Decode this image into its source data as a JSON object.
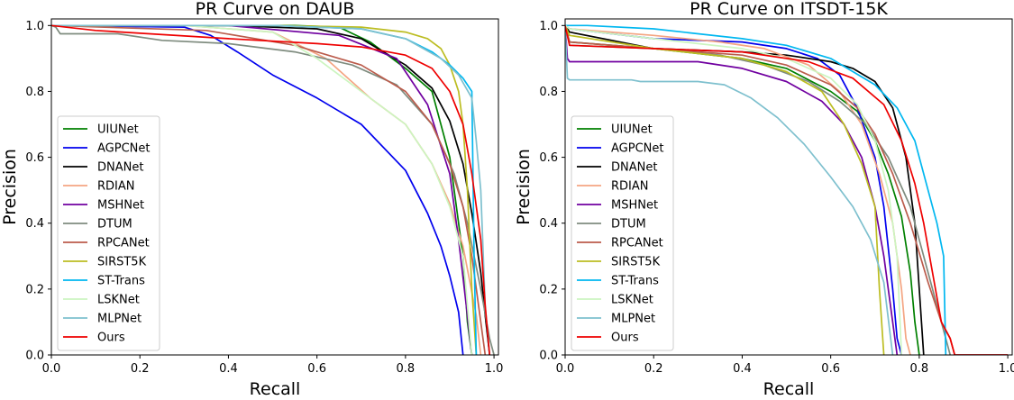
{
  "chart_data": [
    {
      "type": "line",
      "title": "PR Curve on DAUB",
      "xlabel": "Recall",
      "ylabel": "Precision",
      "xlim": [
        0,
        1.01
      ],
      "ylim": [
        0,
        1.02
      ],
      "xticks": [
        0.0,
        0.2,
        0.4,
        0.6,
        0.8,
        1.0
      ],
      "yticks": [
        0.0,
        0.2,
        0.4,
        0.6,
        0.8,
        1.0
      ],
      "xtick_labels": [
        "0.0",
        "0.2",
        "0.4",
        "0.6",
        "0.8",
        "1.0"
      ],
      "ytick_labels": [
        "0.0",
        "0.2",
        "0.4",
        "0.6",
        "0.8",
        "1.0"
      ],
      "grid": false,
      "legend": "lower-left",
      "series": [
        {
          "name": "UIUNet",
          "color": "#008000",
          "x": [
            0,
            0.3,
            0.55,
            0.65,
            0.72,
            0.8,
            0.86,
            0.9,
            0.93,
            0.94,
            0.95
          ],
          "y": [
            1,
            1,
            1,
            0.995,
            0.95,
            0.87,
            0.8,
            0.6,
            0.3,
            0.1,
            0
          ]
        },
        {
          "name": "AGPCNet",
          "color": "#0000ee",
          "x": [
            0,
            0.3,
            0.36,
            0.42,
            0.5,
            0.6,
            0.7,
            0.8,
            0.85,
            0.88,
            0.9,
            0.92,
            0.93
          ],
          "y": [
            1,
            0.995,
            0.97,
            0.92,
            0.85,
            0.78,
            0.7,
            0.56,
            0.43,
            0.33,
            0.24,
            0.13,
            0
          ]
        },
        {
          "name": "DNANet",
          "color": "#000000",
          "x": [
            0,
            0.4,
            0.6,
            0.7,
            0.8,
            0.86,
            0.9,
            0.93,
            0.95,
            0.97,
            0.98,
            0.99
          ],
          "y": [
            1,
            1,
            0.99,
            0.96,
            0.88,
            0.81,
            0.71,
            0.58,
            0.43,
            0.25,
            0.12,
            0
          ]
        },
        {
          "name": "RDIAN",
          "color": "#f4a582",
          "x": [
            0,
            0.3,
            0.5,
            0.62,
            0.72,
            0.8,
            0.86,
            0.9,
            0.93,
            0.96,
            0.97
          ],
          "y": [
            1,
            1,
            0.98,
            0.9,
            0.78,
            0.7,
            0.58,
            0.46,
            0.33,
            0.12,
            0
          ]
        },
        {
          "name": "MSHNet",
          "color": "#7000a0",
          "x": [
            0,
            0.4,
            0.65,
            0.78,
            0.85,
            0.9,
            0.92,
            0.94,
            0.95
          ],
          "y": [
            1,
            1,
            0.97,
            0.9,
            0.76,
            0.55,
            0.35,
            0.12,
            0
          ]
        },
        {
          "name": "DTUM",
          "color": "#7f8c7f",
          "x": [
            0,
            0.01,
            0.02,
            0.15,
            0.25,
            0.4,
            0.55,
            0.68,
            0.78,
            0.86,
            0.91,
            0.94,
            0.97,
            0.99,
            1.0
          ],
          "y": [
            1,
            0.995,
            0.975,
            0.975,
            0.955,
            0.945,
            0.92,
            0.88,
            0.82,
            0.7,
            0.55,
            0.4,
            0.2,
            0.05,
            0
          ]
        },
        {
          "name": "RPCANet",
          "color": "#bb5c4c",
          "x": [
            0,
            0.35,
            0.55,
            0.7,
            0.8,
            0.86,
            0.9,
            0.93,
            0.95,
            0.97,
            0.98
          ],
          "y": [
            1,
            0.985,
            0.94,
            0.88,
            0.8,
            0.7,
            0.58,
            0.45,
            0.3,
            0.1,
            0
          ]
        },
        {
          "name": "SIRST5K",
          "color": "#bcbd22",
          "x": [
            0,
            0.5,
            0.7,
            0.8,
            0.85,
            0.88,
            0.9,
            0.92,
            0.93,
            0.94,
            0.95,
            0.96
          ],
          "y": [
            1,
            1,
            0.995,
            0.98,
            0.96,
            0.93,
            0.88,
            0.8,
            0.7,
            0.5,
            0.2,
            0
          ]
        },
        {
          "name": "ST-Trans",
          "color": "#00b7f0",
          "x": [
            0,
            0.5,
            0.7,
            0.8,
            0.86,
            0.9,
            0.93,
            0.94,
            0.95,
            0.955,
            0.96
          ],
          "y": [
            1,
            1,
            0.99,
            0.96,
            0.92,
            0.88,
            0.84,
            0.82,
            0.8,
            0.3,
            0
          ]
        },
        {
          "name": "LSKNet",
          "color": "#ccf5c0",
          "x": [
            0,
            0.3,
            0.5,
            0.6,
            0.7,
            0.8,
            0.86,
            0.9,
            0.93,
            0.95
          ],
          "y": [
            1,
            1,
            0.98,
            0.9,
            0.8,
            0.7,
            0.58,
            0.45,
            0.3,
            0
          ]
        },
        {
          "name": "MLPNet",
          "color": "#7ec0ce",
          "x": [
            0,
            0.5,
            0.7,
            0.8,
            0.88,
            0.92,
            0.95,
            0.96,
            0.97,
            0.98,
            0.99
          ],
          "y": [
            1,
            1,
            0.99,
            0.96,
            0.9,
            0.85,
            0.78,
            0.65,
            0.5,
            0.15,
            0
          ]
        },
        {
          "name": "Ours",
          "color": "#ee0000",
          "x": [
            0,
            0.1,
            0.4,
            0.6,
            0.7,
            0.8,
            0.86,
            0.9,
            0.93,
            0.95,
            0.97,
            0.98,
            0.99
          ],
          "y": [
            1,
            0.985,
            0.96,
            0.945,
            0.935,
            0.91,
            0.87,
            0.8,
            0.7,
            0.55,
            0.35,
            0.15,
            0
          ]
        }
      ]
    },
    {
      "type": "line",
      "title": "PR Curve on ITSDT-15K",
      "xlabel": "Recall",
      "ylabel": "Precision",
      "xlim": [
        0,
        1.01
      ],
      "ylim": [
        0,
        1.02
      ],
      "xticks": [
        0.0,
        0.2,
        0.4,
        0.6,
        0.8,
        1.0
      ],
      "yticks": [
        0.0,
        0.2,
        0.4,
        0.6,
        0.8,
        1.0
      ],
      "xtick_labels": [
        "0.0",
        "0.2",
        "0.4",
        "0.6",
        "0.8",
        "1.0"
      ],
      "ytick_labels": [
        "0.0",
        "0.2",
        "0.4",
        "0.6",
        "0.8",
        "1.0"
      ],
      "grid": false,
      "legend": "lower-left",
      "series": [
        {
          "name": "UIUNet",
          "color": "#008000",
          "x": [
            0,
            0.01,
            0.2,
            0.4,
            0.5,
            0.6,
            0.66,
            0.7,
            0.73,
            0.76,
            0.78,
            0.79,
            0.8
          ],
          "y": [
            1,
            0.95,
            0.93,
            0.9,
            0.87,
            0.8,
            0.74,
            0.65,
            0.55,
            0.42,
            0.25,
            0.1,
            0
          ]
        },
        {
          "name": "AGPCNet",
          "color": "#0000ee",
          "x": [
            0,
            0.01,
            0.2,
            0.4,
            0.5,
            0.57,
            0.62,
            0.66,
            0.7,
            0.72,
            0.74,
            0.75,
            0.76
          ],
          "y": [
            1,
            0.99,
            0.96,
            0.95,
            0.93,
            0.9,
            0.85,
            0.75,
            0.6,
            0.45,
            0.2,
            0.05,
            0
          ]
        },
        {
          "name": "DNANet",
          "color": "#000000",
          "x": [
            0,
            0.01,
            0.2,
            0.4,
            0.5,
            0.6,
            0.65,
            0.7,
            0.74,
            0.77,
            0.79,
            0.8,
            0.81
          ],
          "y": [
            1,
            0.98,
            0.93,
            0.92,
            0.91,
            0.89,
            0.87,
            0.83,
            0.75,
            0.6,
            0.4,
            0.2,
            0
          ]
        },
        {
          "name": "RDIAN",
          "color": "#f4a582",
          "x": [
            0,
            0.01,
            0.2,
            0.35,
            0.45,
            0.55,
            0.62,
            0.67,
            0.71,
            0.74,
            0.76,
            0.77,
            0.78
          ],
          "y": [
            1,
            0.99,
            0.97,
            0.95,
            0.93,
            0.88,
            0.8,
            0.7,
            0.55,
            0.4,
            0.2,
            0.05,
            0
          ]
        },
        {
          "name": "MSHNet",
          "color": "#7000a0",
          "x": [
            0,
            0.005,
            0.01,
            0.3,
            0.4,
            0.5,
            0.58,
            0.63,
            0.67,
            0.7,
            0.72,
            0.74,
            0.75
          ],
          "y": [
            1,
            0.9,
            0.89,
            0.89,
            0.87,
            0.83,
            0.77,
            0.7,
            0.6,
            0.45,
            0.3,
            0.1,
            0
          ]
        },
        {
          "name": "DTUM",
          "color": "#7f8c7f",
          "x": [
            0,
            0.01,
            0.2,
            0.35,
            0.45,
            0.55,
            0.62,
            0.68,
            0.73,
            0.78,
            0.82,
            0.85,
            0.87
          ],
          "y": [
            1,
            0.94,
            0.93,
            0.91,
            0.88,
            0.83,
            0.77,
            0.7,
            0.6,
            0.45,
            0.25,
            0.1,
            0
          ]
        },
        {
          "name": "RPCANet",
          "color": "#bb5c4c",
          "x": [
            0,
            0.01,
            0.2,
            0.4,
            0.5,
            0.6,
            0.66,
            0.7,
            0.74,
            0.78,
            0.82,
            0.85,
            0.87,
            0.88
          ],
          "y": [
            1,
            0.95,
            0.93,
            0.91,
            0.88,
            0.82,
            0.75,
            0.67,
            0.55,
            0.4,
            0.22,
            0.1,
            0.05,
            0
          ]
        },
        {
          "name": "SIRST5K",
          "color": "#bcbd22",
          "x": [
            0,
            0.01,
            0.2,
            0.4,
            0.5,
            0.58,
            0.63,
            0.67,
            0.7,
            0.71,
            0.72
          ],
          "y": [
            1,
            0.97,
            0.93,
            0.9,
            0.86,
            0.8,
            0.7,
            0.58,
            0.45,
            0.2,
            0
          ]
        },
        {
          "name": "ST-Trans",
          "color": "#00b7f0",
          "x": [
            0,
            0.05,
            0.2,
            0.4,
            0.5,
            0.6,
            0.7,
            0.75,
            0.79,
            0.82,
            0.84,
            0.855,
            0.86
          ],
          "y": [
            1,
            1,
            0.99,
            0.96,
            0.94,
            0.9,
            0.82,
            0.75,
            0.65,
            0.5,
            0.4,
            0.3,
            0
          ]
        },
        {
          "name": "LSKNet",
          "color": "#ccf5c0",
          "x": [
            0,
            0.01,
            0.2,
            0.4,
            0.5,
            0.6,
            0.66,
            0.7,
            0.73,
            0.75,
            0.76
          ],
          "y": [
            1,
            0.99,
            0.96,
            0.93,
            0.9,
            0.84,
            0.76,
            0.65,
            0.5,
            0.3,
            0
          ]
        },
        {
          "name": "MLPNet",
          "color": "#7ec0ce",
          "x": [
            0,
            0.005,
            0.01,
            0.15,
            0.17,
            0.3,
            0.36,
            0.42,
            0.48,
            0.54,
            0.6,
            0.65,
            0.69,
            0.72,
            0.74
          ],
          "y": [
            1,
            0.84,
            0.835,
            0.835,
            0.83,
            0.83,
            0.82,
            0.78,
            0.72,
            0.64,
            0.54,
            0.45,
            0.35,
            0.22,
            0
          ]
        },
        {
          "name": "Ours",
          "color": "#ee0000",
          "x": [
            0,
            0.01,
            0.2,
            0.4,
            0.55,
            0.65,
            0.72,
            0.76,
            0.79,
            0.81,
            0.83,
            0.85,
            0.87,
            0.88,
            1.0
          ],
          "y": [
            1,
            0.94,
            0.93,
            0.92,
            0.89,
            0.84,
            0.76,
            0.65,
            0.52,
            0.4,
            0.25,
            0.1,
            0.05,
            0,
            0
          ]
        }
      ]
    }
  ]
}
